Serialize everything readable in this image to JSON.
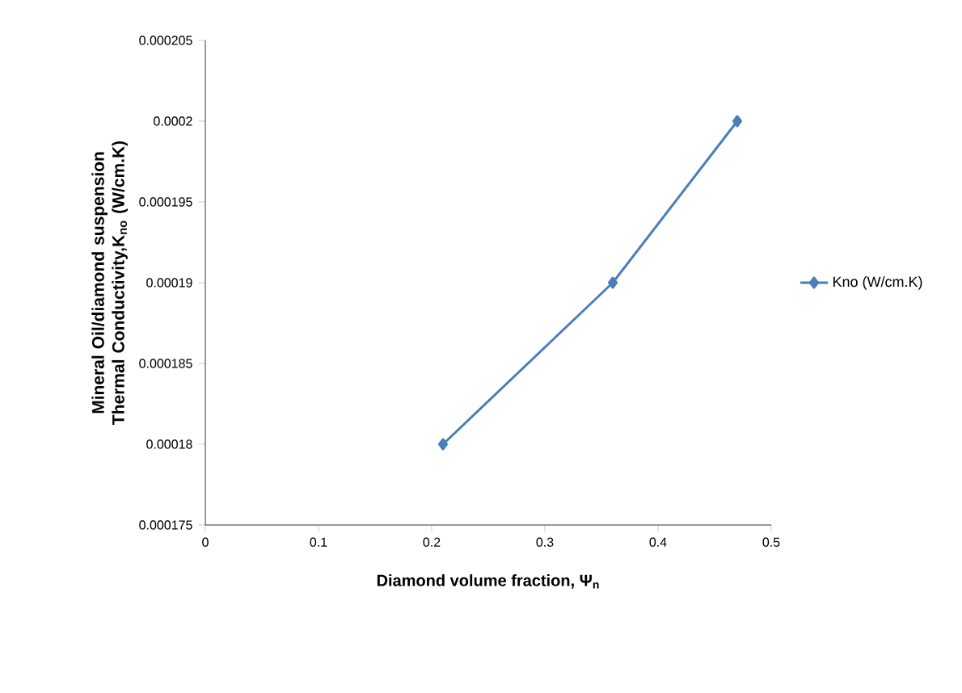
{
  "chart_data": {
    "type": "line",
    "xlabel": "Diamond volume fraction, Ψ$_{n}$",
    "ylabel": "Mineral Oil/diamond suspension Thermal Conductivity,K$_{no}$ (W/cm.K)",
    "x": [
      0.21,
      0.36,
      0.47
    ],
    "series": [
      {
        "name": "Kno (W/cm.K)",
        "color": "#4a7ebb",
        "values": [
          0.00018,
          0.00019,
          0.0002
        ]
      }
    ],
    "xlim": [
      0,
      0.5
    ],
    "xticks": [
      0,
      0.1,
      0.2,
      0.3,
      0.4,
      0.5
    ],
    "ylim": [
      0.000175,
      0.000205
    ],
    "yticks": [
      0.000175,
      0.00018,
      0.000185,
      0.00019,
      0.000195,
      0.0002,
      0.000205
    ],
    "marker": "diamond",
    "line_style": "solid",
    "legend": "right",
    "grid": false
  }
}
